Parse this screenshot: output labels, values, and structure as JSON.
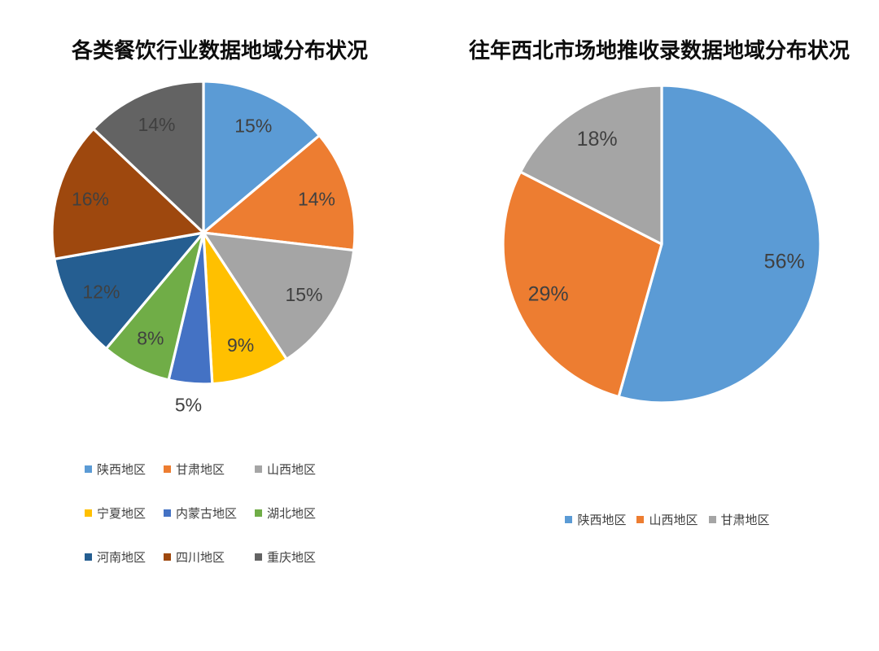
{
  "styles": {
    "background": "#ffffff",
    "title_color": "#0d0d0d",
    "label_color": "#404040",
    "legend_text_color": "#404040",
    "slice_border_color": "#ffffff"
  },
  "chart_data": [
    {
      "type": "pie",
      "title": "各类餐饮行业数据地域分布状况",
      "categories": [
        "陕西地区",
        "甘肃地区",
        "山西地区",
        "宁夏地区",
        "内蒙古地区",
        "湖北地区",
        "河南地区",
        "四川地区",
        "重庆地区"
      ],
      "values": [
        15,
        14,
        15,
        9,
        5,
        8,
        12,
        16,
        14
      ],
      "labels": [
        "15%",
        "14%",
        "15%",
        "9%",
        "5%",
        "8%",
        "12%",
        "16%",
        "14%"
      ],
      "colors": [
        "#5B9BD5",
        "#ED7D31",
        "#A5A5A5",
        "#FFC000",
        "#4472C4",
        "#70AD47",
        "#255E91",
        "#9E480E",
        "#636363"
      ],
      "label_placement": [
        "inside",
        "inside",
        "inside",
        "inside",
        "outside",
        "inside",
        "inside",
        "inside",
        "inside"
      ],
      "unit": "%",
      "start_angle_deg": 0,
      "direction": "clockwise",
      "legend_position": "bottom",
      "legend_layout": "3-column-grid"
    },
    {
      "type": "pie",
      "title": "往年西北市场地推收录数据地域分布状况",
      "categories": [
        "陕西地区",
        "山西地区",
        "甘肃地区"
      ],
      "values": [
        56,
        29,
        18
      ],
      "labels": [
        "56%",
        "29%",
        "18%"
      ],
      "colors": [
        "#5B9BD5",
        "#ED7D31",
        "#A5A5A5"
      ],
      "label_placement": [
        "inside",
        "inside",
        "inside"
      ],
      "unit": "%",
      "start_angle_deg": 0,
      "direction": "clockwise",
      "legend_position": "bottom",
      "legend_layout": "single-row"
    }
  ]
}
